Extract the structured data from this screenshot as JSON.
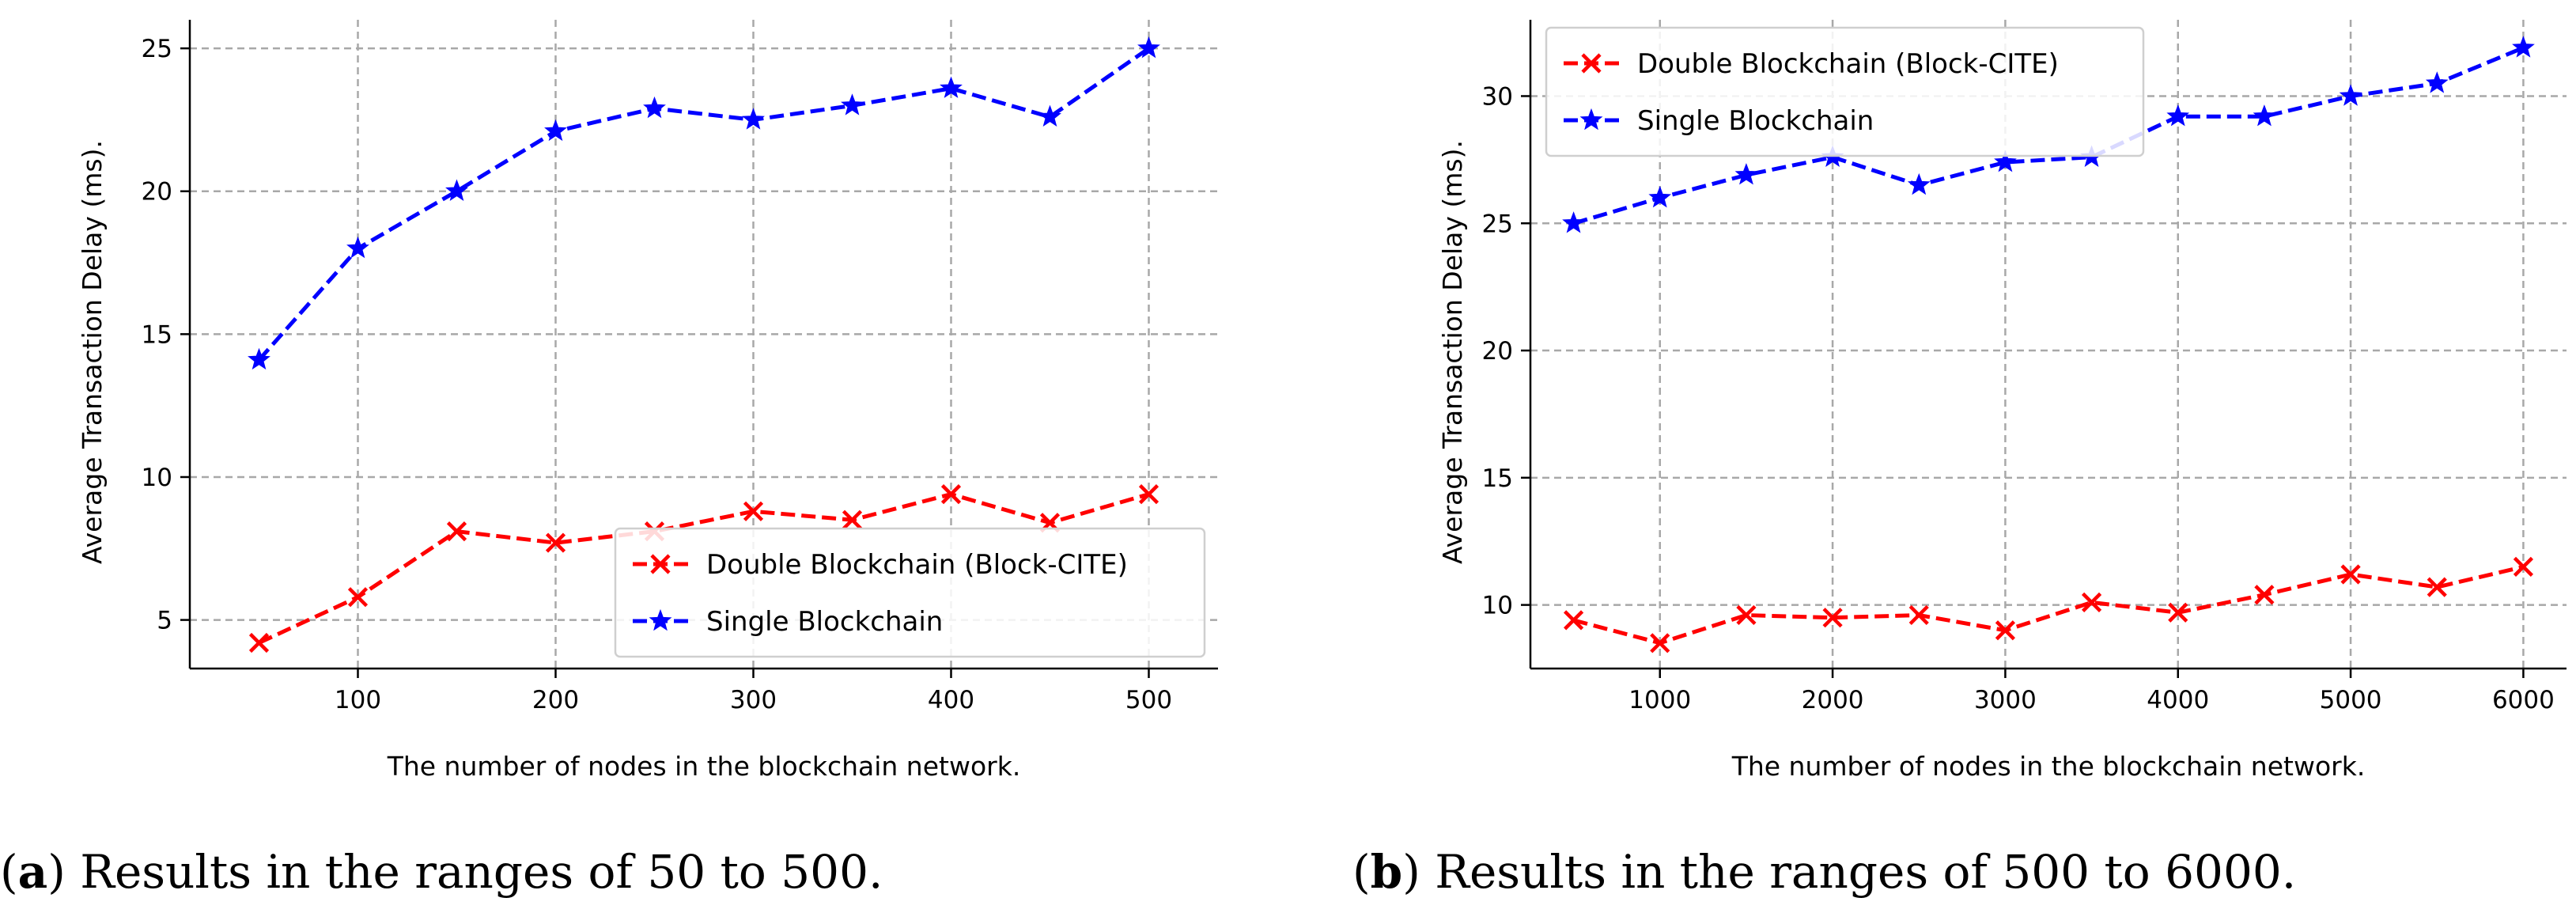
{
  "chart_data": [
    {
      "type": "line",
      "caption": {
        "letter": "a",
        "text": ") Results in the ranges of 50 to 500.",
        "open": "("
      },
      "xlabel": "The number of nodes in the blockchain network.",
      "ylabel": "Average Transaction Delay (ms).",
      "xlim": [
        15,
        535
      ],
      "ylim": [
        3.3,
        26.0
      ],
      "xticks": [
        100,
        200,
        300,
        400,
        500
      ],
      "yticks": [
        5,
        10,
        15,
        20,
        25
      ],
      "grid": true,
      "legend_position": "lower-right",
      "x": [
        50,
        100,
        150,
        200,
        250,
        300,
        350,
        400,
        450,
        500
      ],
      "series": [
        {
          "name": "Double Blockchain (Block-CITE)",
          "color": "#ff0000",
          "marker": "x",
          "values": [
            4.2,
            5.8,
            8.1,
            7.7,
            8.1,
            8.8,
            8.5,
            9.4,
            8.4,
            9.4
          ]
        },
        {
          "name": "Single Blockchain",
          "color": "#0000ff",
          "marker": "star",
          "values": [
            14.1,
            18.0,
            20.0,
            22.1,
            22.9,
            22.5,
            23.0,
            23.6,
            22.6,
            25.0
          ]
        }
      ]
    },
    {
      "type": "line",
      "caption": {
        "letter": "b",
        "text": ") Results in the ranges of 500 to 6000.",
        "open": "("
      },
      "xlabel": "The number of nodes in the blockchain network.",
      "ylabel": "Average Transaction Delay (ms).",
      "xlim": [
        250,
        6250
      ],
      "ylim": [
        7.5,
        33.0
      ],
      "xticks": [
        1000,
        2000,
        3000,
        4000,
        5000,
        6000
      ],
      "yticks": [
        10,
        15,
        20,
        25,
        30
      ],
      "grid": true,
      "legend_position": "upper-left",
      "x": [
        500,
        1000,
        1500,
        2000,
        2500,
        3000,
        3500,
        4000,
        4500,
        5000,
        5500,
        6000
      ],
      "series": [
        {
          "name": "Double Blockchain (Block-CITE)",
          "color": "#ff0000",
          "marker": "x",
          "values": [
            9.4,
            8.5,
            9.6,
            9.5,
            9.6,
            9.0,
            10.1,
            9.7,
            10.4,
            11.2,
            10.7,
            11.5
          ]
        },
        {
          "name": "Single Blockchain",
          "color": "#0000ff",
          "marker": "star",
          "values": [
            25.0,
            26.0,
            26.9,
            27.6,
            26.5,
            27.4,
            27.6,
            29.2,
            29.2,
            30.0,
            30.5,
            31.9
          ]
        }
      ]
    }
  ]
}
